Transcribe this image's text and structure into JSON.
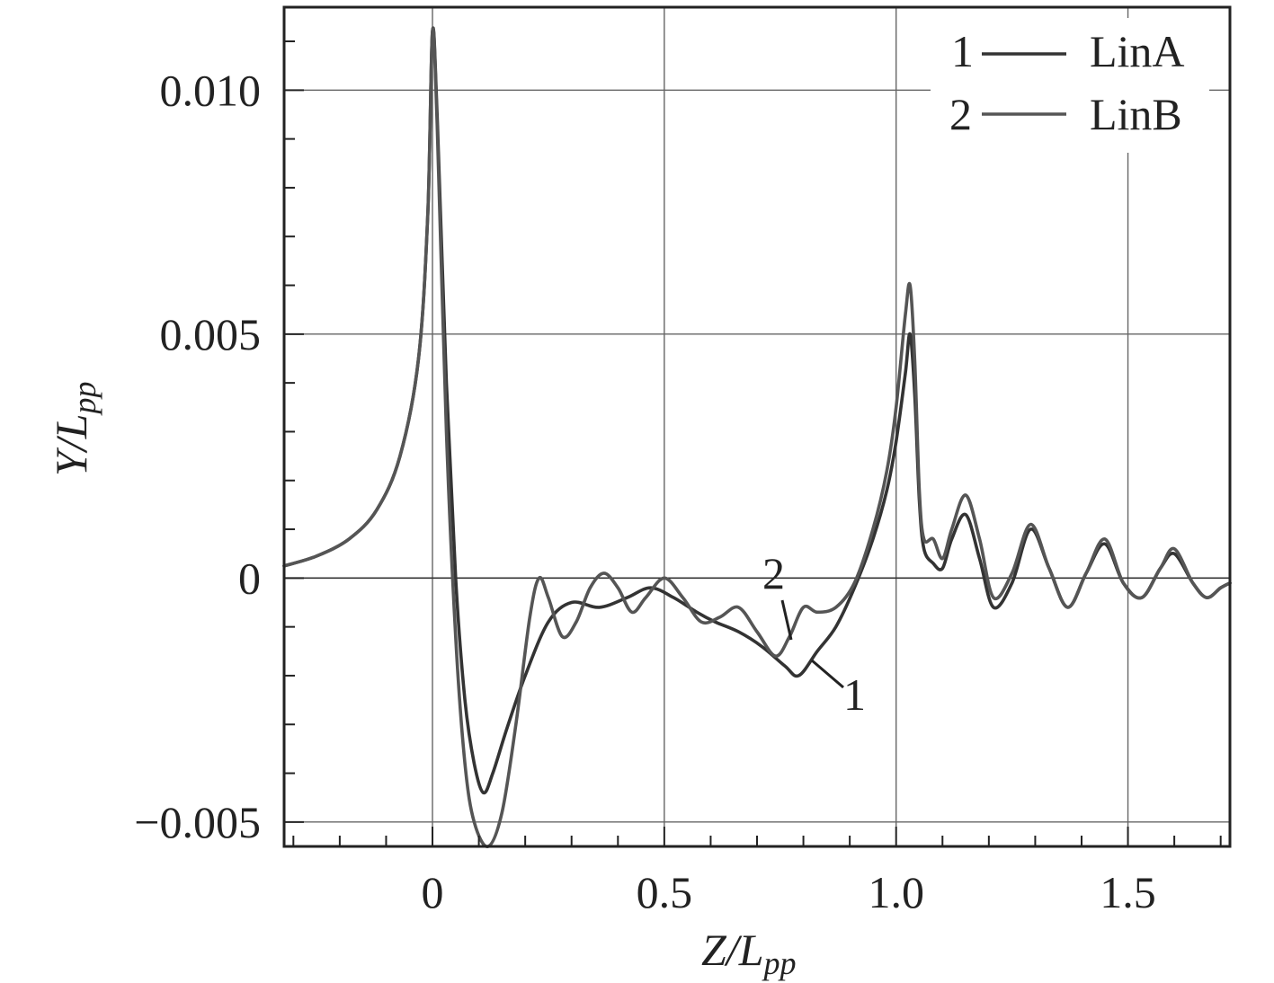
{
  "chart_data": {
    "type": "line",
    "xlabel": {
      "main": "Z/L",
      "sub": "pp"
    },
    "ylabel": {
      "main": "Y/L",
      "sub": "pp"
    },
    "xlim": [
      -0.32,
      1.72
    ],
    "ylim": [
      -0.0055,
      0.0117
    ],
    "x_ticks": [
      {
        "value": 0,
        "label": "0"
      },
      {
        "value": 0.5,
        "label": "0.5"
      },
      {
        "value": 1.0,
        "label": "1.0"
      },
      {
        "value": 1.5,
        "label": "1.5"
      }
    ],
    "y_ticks": [
      {
        "value": -0.005,
        "label": "−0.005"
      },
      {
        "value": 0,
        "label": "0"
      },
      {
        "value": 0.005,
        "label": "0.005"
      },
      {
        "value": 0.01,
        "label": "0.010"
      }
    ],
    "grid": true,
    "legend": {
      "placement": "top-right",
      "items": [
        {
          "key": "1",
          "label": "LinA"
        },
        {
          "key": "2",
          "label": "LinB"
        }
      ]
    },
    "series": [
      {
        "name": "LinA",
        "key": "1",
        "color": "#333333",
        "points": [
          [
            -0.32,
            0.00025
          ],
          [
            -0.25,
            0.00045
          ],
          [
            -0.18,
            0.0008
          ],
          [
            -0.12,
            0.0014
          ],
          [
            -0.07,
            0.0025
          ],
          [
            -0.03,
            0.0045
          ],
          [
            -0.01,
            0.0075
          ],
          [
            0.0,
            0.0112
          ],
          [
            0.01,
            0.0095
          ],
          [
            0.03,
            0.004
          ],
          [
            0.05,
            0.0
          ],
          [
            0.07,
            -0.0025
          ],
          [
            0.09,
            -0.0038
          ],
          [
            0.11,
            -0.0044
          ],
          [
            0.13,
            -0.004
          ],
          [
            0.16,
            -0.0031
          ],
          [
            0.2,
            -0.002
          ],
          [
            0.25,
            -0.0009
          ],
          [
            0.3,
            -0.0005
          ],
          [
            0.36,
            -0.0006
          ],
          [
            0.42,
            -0.0004
          ],
          [
            0.47,
            -0.0002
          ],
          [
            0.52,
            -0.0004
          ],
          [
            0.57,
            -0.0007
          ],
          [
            0.61,
            -0.0009
          ],
          [
            0.66,
            -0.0011
          ],
          [
            0.71,
            -0.0014
          ],
          [
            0.76,
            -0.0018
          ],
          [
            0.79,
            -0.002
          ],
          [
            0.83,
            -0.0015
          ],
          [
            0.87,
            -0.001
          ],
          [
            0.91,
            -0.0002
          ],
          [
            0.95,
            0.0008
          ],
          [
            0.98,
            0.0018
          ],
          [
            1.0,
            0.0028
          ],
          [
            1.02,
            0.0042
          ],
          [
            1.03,
            0.005
          ],
          [
            1.04,
            0.0038
          ],
          [
            1.05,
            0.0016
          ],
          [
            1.06,
            0.0006
          ],
          [
            1.08,
            0.0003
          ],
          [
            1.1,
            0.0002
          ],
          [
            1.12,
            0.0008
          ],
          [
            1.15,
            0.0013
          ],
          [
            1.18,
            0.0004
          ],
          [
            1.21,
            -0.0006
          ],
          [
            1.25,
            -0.0001
          ],
          [
            1.29,
            0.001
          ],
          [
            1.33,
            0.0002
          ],
          [
            1.37,
            -0.0006
          ],
          [
            1.41,
            0.0001
          ],
          [
            1.45,
            0.0007
          ],
          [
            1.49,
            -0.0001
          ],
          [
            1.53,
            -0.0004
          ],
          [
            1.57,
            0.0002
          ],
          [
            1.6,
            0.0005
          ],
          [
            1.64,
            -0.0001
          ],
          [
            1.67,
            -0.0004
          ],
          [
            1.7,
            -0.0002
          ],
          [
            1.72,
            -0.0001
          ]
        ]
      },
      {
        "name": "LinB",
        "key": "2",
        "color": "#555555",
        "points": [
          [
            -0.32,
            0.00025
          ],
          [
            -0.25,
            0.00045
          ],
          [
            -0.18,
            0.0008
          ],
          [
            -0.12,
            0.0014
          ],
          [
            -0.07,
            0.0025
          ],
          [
            -0.03,
            0.0045
          ],
          [
            -0.01,
            0.0075
          ],
          [
            0.0,
            0.0112
          ],
          [
            0.01,
            0.0093
          ],
          [
            0.03,
            0.003
          ],
          [
            0.05,
            -0.0012
          ],
          [
            0.07,
            -0.0038
          ],
          [
            0.09,
            -0.005
          ],
          [
            0.12,
            -0.0055
          ],
          [
            0.15,
            -0.0048
          ],
          [
            0.18,
            -0.003
          ],
          [
            0.21,
            -0.0008
          ],
          [
            0.23,
            0.0
          ],
          [
            0.25,
            -0.0004
          ],
          [
            0.28,
            -0.0012
          ],
          [
            0.31,
            -0.0009
          ],
          [
            0.34,
            -0.0002
          ],
          [
            0.37,
            0.0001
          ],
          [
            0.4,
            -0.0002
          ],
          [
            0.43,
            -0.0007
          ],
          [
            0.46,
            -0.0004
          ],
          [
            0.5,
            0.0
          ],
          [
            0.54,
            -0.0004
          ],
          [
            0.58,
            -0.0009
          ],
          [
            0.62,
            -0.0008
          ],
          [
            0.66,
            -0.0006
          ],
          [
            0.7,
            -0.0011
          ],
          [
            0.74,
            -0.0016
          ],
          [
            0.77,
            -0.0012
          ],
          [
            0.8,
            -0.0006
          ],
          [
            0.83,
            -0.0007
          ],
          [
            0.87,
            -0.0006
          ],
          [
            0.91,
            -0.0001
          ],
          [
            0.95,
            0.001
          ],
          [
            0.98,
            0.0022
          ],
          [
            1.0,
            0.0035
          ],
          [
            1.02,
            0.0054
          ],
          [
            1.03,
            0.006
          ],
          [
            1.04,
            0.0045
          ],
          [
            1.05,
            0.0018
          ],
          [
            1.06,
            0.0008
          ],
          [
            1.08,
            0.0008
          ],
          [
            1.1,
            0.0004
          ],
          [
            1.12,
            0.001
          ],
          [
            1.15,
            0.0017
          ],
          [
            1.18,
            0.0008
          ],
          [
            1.21,
            -0.0004
          ],
          [
            1.25,
            0.0001
          ],
          [
            1.29,
            0.0011
          ],
          [
            1.33,
            0.0002
          ],
          [
            1.37,
            -0.0006
          ],
          [
            1.41,
            0.0001
          ],
          [
            1.45,
            0.0008
          ],
          [
            1.49,
            -0.0001
          ],
          [
            1.53,
            -0.0004
          ],
          [
            1.57,
            0.0002
          ],
          [
            1.6,
            0.0006
          ],
          [
            1.64,
            -0.0001
          ],
          [
            1.67,
            -0.0004
          ],
          [
            1.7,
            -0.0002
          ],
          [
            1.72,
            -0.0001
          ]
        ]
      }
    ],
    "annotations": [
      {
        "text": "2",
        "series": "LinB"
      },
      {
        "text": "1",
        "series": "LinA"
      }
    ]
  }
}
